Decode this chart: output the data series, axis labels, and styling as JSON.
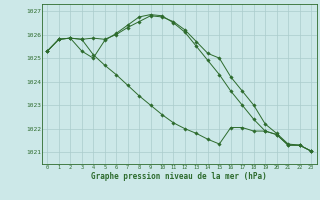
{
  "title": "Graphe pression niveau de la mer (hPa)",
  "background_color": "#cce8e8",
  "grid_color": "#aacccc",
  "line_color": "#2d6b2d",
  "x_ticks": [
    0,
    1,
    2,
    3,
    4,
    5,
    6,
    7,
    8,
    9,
    10,
    11,
    12,
    13,
    14,
    15,
    16,
    17,
    18,
    19,
    20,
    21,
    22,
    23
  ],
  "ylim": [
    1020.5,
    1027.3
  ],
  "yticks": [
    1021,
    1022,
    1023,
    1024,
    1025,
    1026,
    1027
  ],
  "line1": [
    1025.3,
    1025.8,
    1025.85,
    1025.8,
    1025.85,
    1025.8,
    1026.0,
    1026.3,
    1026.55,
    1026.8,
    1026.75,
    1026.55,
    1026.2,
    1025.7,
    1025.2,
    1025.0,
    1024.2,
    1023.6,
    1023.0,
    1022.2,
    1021.8,
    1021.35,
    1021.3,
    1021.05
  ],
  "line2": [
    1025.3,
    1025.8,
    1025.85,
    1025.3,
    1025.0,
    1025.75,
    1026.05,
    1026.4,
    1026.75,
    1026.85,
    1026.8,
    1026.5,
    1026.1,
    1025.5,
    1024.9,
    1024.3,
    1023.6,
    1023.0,
    1022.4,
    1021.9,
    1021.75,
    1021.3,
    1021.3,
    1021.05
  ],
  "line3": [
    1025.3,
    1025.8,
    1025.85,
    1025.8,
    1025.15,
    1024.7,
    1024.3,
    1023.85,
    1023.4,
    1023.0,
    1022.6,
    1022.25,
    1022.0,
    1021.8,
    1021.55,
    1021.35,
    1022.05,
    1022.05,
    1021.9,
    1021.9,
    1021.75,
    1021.3,
    1021.3,
    1021.05
  ]
}
